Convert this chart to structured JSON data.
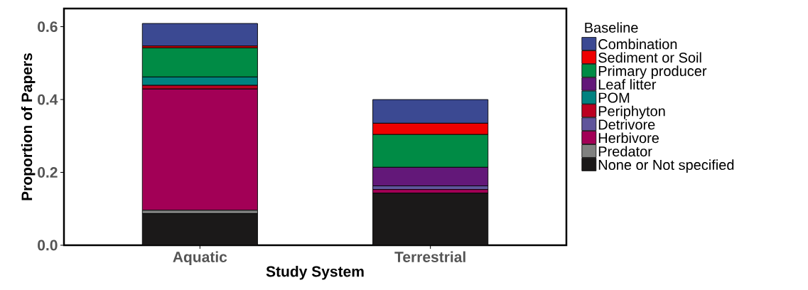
{
  "chart_data": {
    "type": "bar",
    "stacked": true,
    "xlabel": "Study System",
    "ylabel": "Proportion of Papers",
    "legend_title": "Baseline",
    "legend": "right",
    "categories": [
      "Aquatic",
      "Terrestrial"
    ],
    "ylim": [
      0,
      0.65
    ],
    "yticks": [
      {
        "value": 0,
        "label": "0.0"
      },
      0.2,
      0.4,
      0.6
    ],
    "series": [
      {
        "name": "None or Not specified",
        "color": "#1b1919",
        "values": [
          0.087,
          0.143
        ]
      },
      {
        "name": "Predator",
        "color": "#808180",
        "values": [
          0.009,
          null
        ]
      },
      {
        "name": "Herbivore",
        "color": "#a20056",
        "values": [
          0.333,
          0.01
        ]
      },
      {
        "name": "Detrivore",
        "color": "#5f559b",
        "values": [
          null,
          0.01
        ]
      },
      {
        "name": "Periphyton",
        "color": "#bb0021",
        "values": [
          0.01,
          null
        ]
      },
      {
        "name": "POM",
        "color": "#008280",
        "values": [
          0.023,
          null
        ]
      },
      {
        "name": "Leaf litter",
        "color": "#631879",
        "values": [
          null,
          0.051
        ]
      },
      {
        "name": "Primary producer",
        "color": "#008b45",
        "values": [
          0.08,
          0.09
        ]
      },
      {
        "name": "Sediment or Soil",
        "color": "#ee0000",
        "values": [
          0.005,
          0.031
        ]
      },
      {
        "name": "Combination",
        "color": "#3b4992",
        "values": [
          0.062,
          0.065
        ]
      }
    ]
  }
}
